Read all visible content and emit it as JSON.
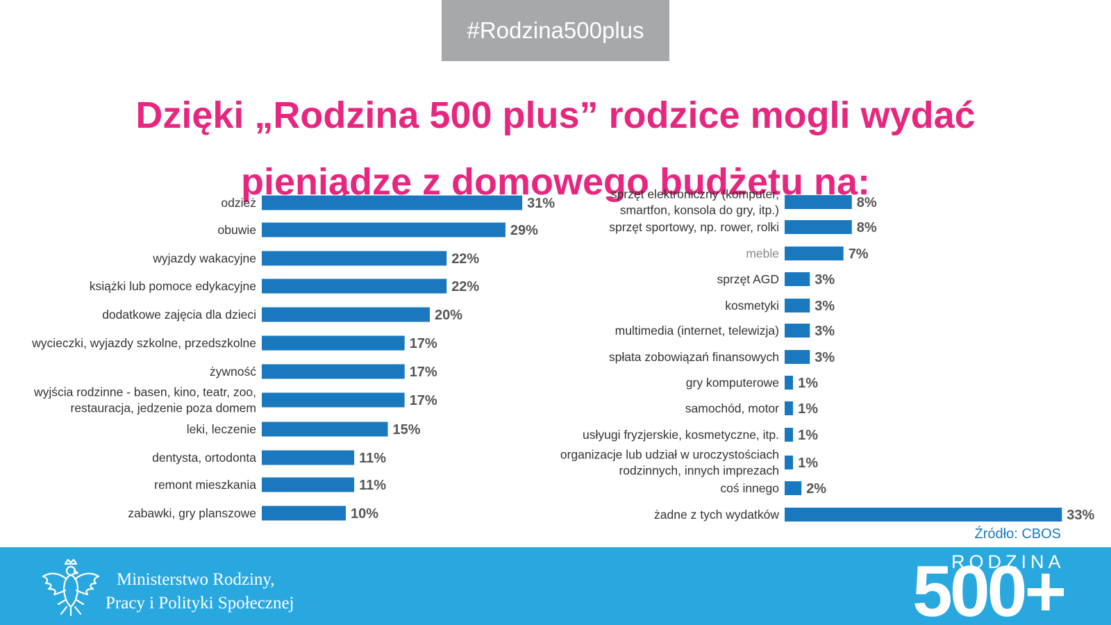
{
  "header": {
    "hashtag": "#Rodzina500plus"
  },
  "title_lines": [
    "Dzięki „Rodzina 500 plus” rodzice mogli wydać",
    "pieniądze z domowego budżetu na:"
  ],
  "source": "Źródło: CBOS",
  "footer": {
    "ministry_line1": "Ministerstwo Rodziny,",
    "ministry_line2": "Pracy i Polityki Społecznej",
    "brand_word": "RODZINA",
    "brand_number": "500+",
    "emblem_icon": "polish-eagle-emblem"
  },
  "colors": {
    "title": "#e6267f",
    "bar": "#1a78bf",
    "footer": "#29a8e0",
    "hashtag_bg": "#a6a8aa"
  },
  "chart_data": [
    {
      "type": "bar",
      "orientation": "horizontal",
      "unit": "%",
      "categories": [
        "odzież",
        "obuwie",
        "wyjazdy wakacyjne",
        "książki lub pomoce edykacyjne",
        "dodatkowe zajęcia dla dzieci",
        "wycieczki, wyjazdy szkolne, przedszkolne",
        "żywność",
        "wyjścia rodzinne - basen, kino, teatr, zoo, restauracja, jedzenie poza domem",
        "leki, leczenie",
        "dentysta, ortodonta",
        "remont mieszkania",
        "zabawki, gry planszowe"
      ],
      "label_lines": [
        [
          "odzież"
        ],
        [
          "obuwie"
        ],
        [
          "wyjazdy wakacyjne"
        ],
        [
          "książki lub pomoce edykacyjne"
        ],
        [
          "dodatkowe zajęcia dla dzieci"
        ],
        [
          "wycieczki, wyjazdy szkolne, przedszkolne"
        ],
        [
          "żywność"
        ],
        [
          "wyjścia rodzinne - basen, kino, teatr, zoo,",
          "restauracja, jedzenie poza domem"
        ],
        [
          "leki, leczenie"
        ],
        [
          "dentysta, ortodonta"
        ],
        [
          "remont mieszkania"
        ],
        [
          "zabawki, gry planszowe"
        ]
      ],
      "values": [
        31,
        29,
        22,
        22,
        20,
        17,
        17,
        17,
        15,
        11,
        11,
        10
      ]
    },
    {
      "type": "bar",
      "orientation": "horizontal",
      "unit": "%",
      "categories": [
        "sprzęt elektroniczny (komputer, smartfon, konsola do gry, itp.)",
        "sprzęt sportowy, np. rower, rolki",
        "meble",
        "sprzęt AGD",
        "kosmetyki",
        "multimedia (internet, telewizja)",
        "spłata zobowiązań finansowych",
        "gry komputerowe",
        "samochód, motor",
        "usłyugi fryzjerskie, kosmetyczne, itp.",
        "organizacje lub udział w uroczystościach rodzinnych, innych imprezach",
        "coś innego",
        "żadne z tych wydatków"
      ],
      "label_lines": [
        [
          "sprzęt elektroniczny (komputer,",
          "smartfon, konsola do gry, itp.)"
        ],
        [
          "sprzęt sportowy, np. rower, rolki"
        ],
        [
          "meble"
        ],
        [
          "sprzęt AGD"
        ],
        [
          "kosmetyki"
        ],
        [
          "multimedia (internet, telewizja)"
        ],
        [
          "spłata zobowiązań finansowych"
        ],
        [
          "gry komputerowe"
        ],
        [
          "samochód, motor"
        ],
        [
          "usłyugi fryzjerskie, kosmetyczne, itp."
        ],
        [
          "organizacje lub udział w uroczystościach",
          "rodzinnych, innych imprezach"
        ],
        [
          "coś innego"
        ],
        [
          "żadne z tych wydatków"
        ]
      ],
      "values": [
        8,
        8,
        7,
        3,
        3,
        3,
        3,
        1,
        1,
        1,
        1,
        2,
        33
      ]
    }
  ]
}
